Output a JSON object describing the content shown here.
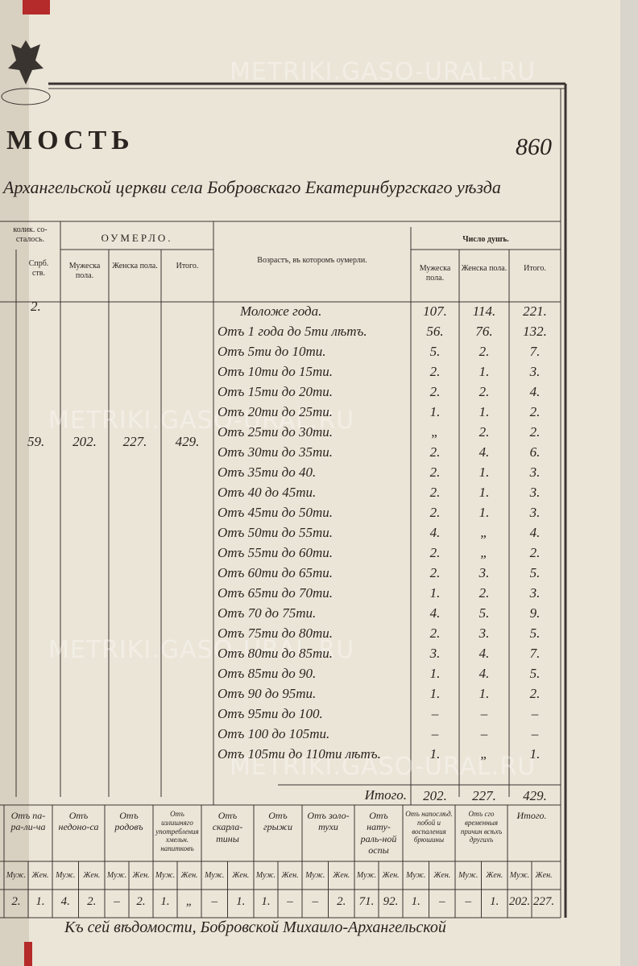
{
  "watermark": "METRIKI.GASO-URAL.RU",
  "page_number": "860",
  "title": "мость",
  "subtitle": "Архангельской церкви села Бобровскаго Екатеринбургскаго уѣзда",
  "left_columns": {
    "group_header": "колик. со-сталось.",
    "subheader": "Спрб. ств.",
    "values": [
      "2.",
      "59."
    ]
  },
  "died": {
    "header": "Оумерло.",
    "columns": [
      "Мужеска пола.",
      "Женска пола.",
      "Итого."
    ],
    "values": [
      "202.",
      "227.",
      "429."
    ]
  },
  "age_header": "Возрастъ, въ которомъ оумерли.",
  "souls": {
    "header": "Число душъ.",
    "columns": [
      "Мужеска пола.",
      "Женска пола.",
      "Итого."
    ]
  },
  "rows": [
    {
      "age": "Моложе года.",
      "male": "107.",
      "female": "114.",
      "total": "221."
    },
    {
      "age": "Отъ 1 года до 5ти лѣтъ.",
      "male": "56.",
      "female": "76.",
      "total": "132."
    },
    {
      "age": "Отъ 5ти до 10ти.",
      "male": "5.",
      "female": "2.",
      "total": "7."
    },
    {
      "age": "Отъ 10ти до 15ти.",
      "male": "2.",
      "female": "1.",
      "total": "3."
    },
    {
      "age": "Отъ 15ти до 20ти.",
      "male": "2.",
      "female": "2.",
      "total": "4."
    },
    {
      "age": "Отъ 20ти до 25ти.",
      "male": "1.",
      "female": "1.",
      "total": "2."
    },
    {
      "age": "Отъ 25ти до 30ти.",
      "male": "„",
      "female": "2.",
      "total": "2."
    },
    {
      "age": "Отъ 30ти до 35ти.",
      "male": "2.",
      "female": "4.",
      "total": "6."
    },
    {
      "age": "Отъ 35ти до 40.",
      "male": "2.",
      "female": "1.",
      "total": "3."
    },
    {
      "age": "Отъ 40 до 45ти.",
      "male": "2.",
      "female": "1.",
      "total": "3."
    },
    {
      "age": "Отъ 45ти до 50ти.",
      "male": "2.",
      "female": "1.",
      "total": "3."
    },
    {
      "age": "Отъ 50ти до 55ти.",
      "male": "4.",
      "female": "„",
      "total": "4."
    },
    {
      "age": "Отъ 55ти до 60ти.",
      "male": "2.",
      "female": "„",
      "total": "2."
    },
    {
      "age": "Отъ 60ти до 65ти.",
      "male": "2.",
      "female": "3.",
      "total": "5."
    },
    {
      "age": "Отъ 65ти до 70ти.",
      "male": "1.",
      "female": "2.",
      "total": "3."
    },
    {
      "age": "Отъ 70 до 75ти.",
      "male": "4.",
      "female": "5.",
      "total": "9."
    },
    {
      "age": "Отъ 75ти до 80ти.",
      "male": "2.",
      "female": "3.",
      "total": "5."
    },
    {
      "age": "Отъ 80ти до 85ти.",
      "male": "3.",
      "female": "4.",
      "total": "7."
    },
    {
      "age": "Отъ 85ти до 90.",
      "male": "1.",
      "female": "4.",
      "total": "5."
    },
    {
      "age": "Отъ 90 до 95ти.",
      "male": "1.",
      "female": "1.",
      "total": "2."
    },
    {
      "age": "Отъ 95ти до 100.",
      "male": "–",
      "female": "–",
      "total": "–"
    },
    {
      "age": "Отъ 100 до 105ти.",
      "male": "–",
      "female": "–",
      "total": "–"
    },
    {
      "age": "Отъ 105ти до 110ти лѣтъ.",
      "male": "1.",
      "female": "„",
      "total": "1."
    }
  ],
  "total_row": {
    "label": "Итого.",
    "male": "202.",
    "female": "227.",
    "total": "429."
  },
  "causes": {
    "headers": [
      "Отъ па-ра-ли-ча",
      "Отъ недоно-са",
      "Отъ родовъ",
      "Отъ излишняго употребления хмельн. напитковъ",
      "Отъ скарла-тины",
      "Отъ грыжи",
      "Отъ золо-тухи",
      "Отъ нату-раль-ной оспы",
      "Отъ напослѣд. побой и воспаления брюшины",
      "Отъ сго временныя причин всѣхъ другихъ",
      "Итого."
    ],
    "subheaders": [
      "Муж.",
      "Жен."
    ],
    "values": [
      [
        "2.",
        "1."
      ],
      [
        "4.",
        "2."
      ],
      [
        "–",
        "2."
      ],
      [
        "1.",
        "„"
      ],
      [
        "–",
        "1."
      ],
      [
        "1.",
        "–"
      ],
      [
        "–",
        "2."
      ],
      [
        "71.",
        "92."
      ],
      [
        "1.",
        "–"
      ],
      [
        "–",
        "1."
      ],
      [
        "202.",
        "227."
      ]
    ]
  },
  "footnote": "Къ сей вѣдомости, Бобровской Михаило-Архангельской"
}
